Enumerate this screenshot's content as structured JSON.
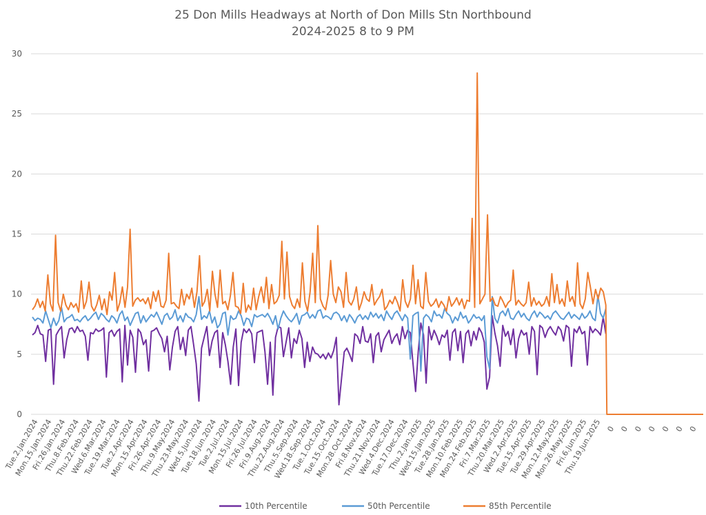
{
  "chart_data": {
    "type": "line",
    "title": "25 Don Mills Headways at North of Don Mills Stn Northbound",
    "subtitle": "2024-2025 8 to 9 PM",
    "xlabel": "",
    "ylabel": "",
    "ylim": [
      0,
      30
    ],
    "yticks": [
      0,
      5,
      10,
      15,
      20,
      25,
      30
    ],
    "grid": true,
    "legend_position": "bottom",
    "x_tick_labels": [
      "Tue.2.Jan.2024",
      "Mon.15.Jan.2024",
      "Fri.26.Jan.2024",
      "Thu.8.Feb.2024",
      "Thu.22.Feb.2024",
      "Wed.6.Mar.2024",
      "Tue.19.Mar.2024",
      "Tue.2.Apr.2024",
      "Mon.15.Apr.2024",
      "Fri.26.Apr.2024",
      "Thu.9.May.2024",
      "Thu.23.May.2024",
      "Wed.5.Jun.2024",
      "Tue.18.Jun.2024",
      "Tue.2.Jul.2024",
      "Mon.15.Jul.2024",
      "Fri.26.Jul.2024",
      "Fri.9.Aug.2024",
      "Thu.22.Aug.2024",
      "Thu.5.Sep.2024",
      "Wed.18.Sep.2024",
      "Tue.1.Oct.2024",
      "Tue.15.Oct.2024",
      "Mon.28.Oct.2024",
      "Fri.8.Nov.2024",
      "Thu.21.Nov.2024",
      "Wed.4.Dec.2024",
      "Tue.17.Dec.2024",
      "Thu.2.Jan.2025",
      "Wed.15.Jan.2025",
      "Tue.28.Jan.2025",
      "Mon.10.Feb.2025",
      "Mon.24.Feb.2025",
      "Fri.7.Mar.2025",
      "Thu.20.Mar.2025",
      "Wed.2.Apr.2025",
      "Tue.15.Apr.2025",
      "Tue.29.Apr.2025",
      "Mon.12.May.2025",
      "Mon.26.May.2025",
      "Fri.6.Jun.2025",
      "Thu.19.Jun.2025",
      "0",
      "0",
      "0",
      "0",
      "0",
      "0",
      "0"
    ],
    "date_category_count": 42,
    "trailing_zero_categories": 7,
    "series": [
      {
        "name": "10th Percentile",
        "color": "#7030a0",
        "values": [
          6.6,
          6.8,
          7.4,
          6.7,
          6.6,
          4.4,
          7.0,
          7.1,
          2.5,
          6.6,
          7.0,
          7.3,
          4.7,
          6.2,
          7.1,
          7.2,
          6.8,
          7.3,
          6.9,
          7.0,
          6.5,
          4.5,
          6.8,
          6.7,
          7.1,
          6.9,
          7.0,
          7.2,
          3.1,
          6.8,
          7.0,
          6.5,
          6.9,
          7.1,
          2.7,
          7.4,
          4.1,
          7.0,
          6.4,
          3.5,
          7.1,
          6.8,
          5.8,
          6.2,
          3.6,
          6.9,
          7.0,
          7.2,
          6.7,
          6.3,
          5.2,
          6.5,
          3.7,
          5.6,
          6.9,
          7.3,
          5.4,
          6.4,
          4.9,
          7.0,
          7.3,
          5.8,
          4.2,
          1.1,
          5.5,
          6.4,
          7.3,
          4.9,
          6.1,
          6.8,
          7.0,
          3.9,
          6.8,
          5.8,
          4.4,
          2.5,
          5.6,
          7.1,
          2.4,
          6.0,
          7.1,
          6.8,
          7.1,
          6.7,
          4.3,
          6.8,
          6.9,
          7.0,
          5.2,
          2.5,
          6.0,
          1.6,
          6.4,
          7.3,
          7.2,
          4.8,
          6.0,
          7.2,
          4.7,
          6.3,
          5.9,
          7.0,
          6.3,
          3.9,
          6.0,
          4.4,
          5.6,
          5.1,
          5.0,
          4.7,
          5.0,
          4.6,
          5.1,
          4.7,
          5.3,
          6.4,
          0.8,
          3.0,
          5.2,
          5.5,
          5.0,
          4.4,
          6.7,
          6.5,
          5.9,
          7.3,
          6.1,
          6.0,
          6.7,
          4.3,
          6.5,
          6.8,
          5.2,
          6.2,
          6.6,
          7.0,
          5.9,
          6.4,
          6.7,
          5.8,
          7.3,
          6.3,
          7.0,
          6.8,
          4.3,
          1.9,
          5.2,
          7.6,
          6.6,
          2.6,
          7.3,
          6.2,
          7.0,
          6.5,
          5.8,
          6.6,
          6.4,
          7.0,
          4.5,
          6.8,
          7.1,
          5.3,
          6.9,
          4.3,
          6.7,
          7.0,
          5.7,
          6.9,
          6.2,
          7.2,
          6.8,
          6.0,
          2.1,
          3.1,
          8.2,
          6.8,
          5.7,
          4.0,
          7.4,
          6.5,
          6.9,
          5.8,
          7.1,
          4.7,
          6.3,
          7.0,
          6.6,
          6.8,
          5.0,
          7.3,
          6.9,
          3.3,
          7.4,
          7.2,
          6.4,
          7.0,
          7.3,
          6.9,
          6.6,
          7.3,
          7.0,
          6.1,
          7.4,
          7.2,
          4.0,
          7.1,
          6.8,
          7.3,
          6.7,
          6.9,
          4.1,
          7.3,
          6.8,
          7.1,
          6.9,
          6.6,
          8.1,
          6.7
        ]
      },
      {
        "name": "50th Percentile",
        "color": "#5b9bd5",
        "values": [
          8.1,
          7.8,
          8.0,
          7.9,
          7.6,
          8.6,
          7.9,
          7.2,
          8.0,
          7.4,
          7.8,
          8.9,
          7.7,
          8.0,
          8.1,
          8.3,
          7.8,
          7.9,
          7.7,
          8.0,
          8.2,
          7.8,
          8.0,
          8.3,
          8.5,
          7.9,
          8.4,
          8.2,
          7.9,
          7.7,
          8.2,
          8.0,
          7.6,
          8.3,
          8.6,
          7.8,
          8.1,
          7.4,
          7.9,
          8.4,
          8.5,
          7.6,
          8.2,
          7.7,
          8.0,
          8.3,
          8.1,
          8.5,
          8.0,
          7.5,
          8.2,
          8.4,
          7.9,
          8.1,
          8.7,
          7.8,
          8.2,
          7.7,
          8.4,
          8.1,
          8.0,
          7.7,
          8.3,
          9.8,
          7.9,
          8.2,
          8.0,
          8.6,
          7.6,
          8.1,
          7.2,
          7.5,
          8.4,
          8.5,
          6.6,
          8.2,
          7.9,
          8.0,
          8.6,
          8.2,
          7.4,
          8.0,
          7.9,
          7.3,
          8.3,
          8.1,
          8.2,
          8.3,
          8.1,
          8.4,
          8.0,
          7.5,
          8.2,
          7.1,
          8.0,
          8.6,
          8.2,
          7.9,
          7.7,
          8.0,
          8.4,
          7.5,
          8.2,
          8.3,
          8.5,
          8.0,
          8.3,
          8.0,
          8.6,
          8.7,
          8.0,
          8.2,
          8.1,
          7.9,
          8.4,
          8.5,
          8.3,
          7.8,
          8.2,
          7.7,
          8.3,
          8.0,
          7.6,
          8.1,
          8.3,
          7.9,
          8.2,
          7.9,
          8.5,
          8.1,
          8.4,
          8.0,
          8.3,
          7.8,
          8.6,
          8.2,
          7.9,
          8.4,
          8.6,
          8.2,
          7.8,
          8.3,
          8.0,
          4.6,
          8.2,
          8.4,
          8.5,
          3.6,
          8.0,
          8.3,
          8.1,
          7.7,
          8.6,
          8.2,
          8.3,
          8.0,
          8.8,
          8.4,
          8.2,
          7.6,
          8.1,
          7.8,
          8.5,
          8.0,
          8.2,
          7.6,
          7.9,
          8.3,
          8.0,
          8.1,
          7.8,
          8.2,
          4.8,
          3.8,
          9.8,
          8.0,
          7.6,
          8.4,
          8.6,
          8.2,
          8.8,
          8.0,
          7.9,
          8.3,
          8.6,
          8.1,
          8.4,
          8.0,
          7.8,
          8.3,
          8.6,
          8.1,
          8.5,
          8.3,
          8.0,
          8.2,
          7.9,
          8.4,
          8.6,
          8.3,
          8.0,
          7.9,
          8.2,
          8.5,
          8.0,
          8.3,
          8.1,
          7.9,
          8.4,
          8.0,
          8.2,
          8.6,
          8.0,
          7.8,
          9.9,
          8.4,
          8.0,
          8.8
        ]
      },
      {
        "name": "85th Percentile",
        "color": "#ed7d31",
        "values": [
          8.7,
          9.0,
          9.6,
          8.9,
          9.4,
          8.6,
          11.6,
          9.2,
          8.6,
          14.9,
          9.3,
          8.6,
          10.0,
          9.1,
          8.7,
          9.3,
          8.9,
          9.2,
          8.5,
          11.1,
          8.8,
          9.4,
          11.0,
          9.0,
          8.6,
          9.1,
          9.9,
          8.7,
          9.6,
          8.3,
          10.2,
          9.5,
          11.8,
          8.6,
          9.3,
          10.6,
          8.9,
          10.6,
          15.4,
          9.0,
          9.5,
          9.7,
          9.4,
          9.6,
          9.2,
          9.7,
          8.8,
          10.2,
          9.4,
          10.3,
          9.0,
          8.9,
          9.5,
          13.4,
          9.2,
          9.3,
          9.0,
          8.8,
          10.4,
          9.1,
          10.0,
          9.6,
          10.5,
          8.9,
          10.2,
          13.2,
          9.0,
          9.4,
          10.4,
          8.6,
          11.9,
          10.0,
          8.9,
          12.0,
          9.2,
          9.4,
          8.7,
          9.9,
          11.8,
          9.0,
          8.9,
          8.4,
          10.9,
          8.5,
          9.1,
          8.7,
          10.5,
          8.7,
          9.8,
          10.6,
          9.3,
          11.4,
          8.8,
          10.8,
          9.2,
          9.4,
          9.9,
          14.4,
          9.6,
          13.5,
          9.8,
          9.1,
          8.8,
          9.6,
          8.9,
          12.6,
          9.4,
          8.6,
          10.2,
          13.4,
          9.3,
          15.7,
          9.6,
          9.0,
          8.7,
          9.9,
          12.8,
          10.0,
          9.3,
          10.6,
          10.2,
          8.9,
          11.8,
          9.4,
          9.1,
          9.6,
          10.6,
          8.7,
          9.3,
          10.2,
          9.6,
          9.4,
          10.8,
          9.1,
          9.5,
          9.8,
          10.4,
          8.7,
          9.0,
          9.5,
          9.2,
          9.8,
          9.3,
          8.6,
          11.2,
          9.4,
          8.9,
          9.6,
          12.4,
          9.2,
          11.2,
          9.0,
          8.8,
          11.8,
          9.4,
          9.0,
          9.2,
          9.6,
          8.9,
          9.4,
          9.1,
          8.6,
          9.8,
          9.0,
          9.3,
          9.7,
          9.1,
          9.6,
          8.8,
          9.5,
          9.4,
          16.3,
          8.9,
          28.4,
          9.2,
          9.6,
          10.0,
          16.6,
          9.4,
          9.7,
          9.1,
          9.0,
          9.8,
          9.4,
          8.9,
          9.3,
          9.5,
          12.0,
          9.1,
          9.5,
          9.2,
          9.0,
          9.3,
          11.0,
          9.0,
          9.7,
          9.1,
          9.4,
          9.0,
          9.2,
          9.8,
          9.0,
          11.7,
          9.3,
          10.8,
          9.2,
          9.6,
          9.0,
          11.1,
          9.4,
          9.8,
          9.0,
          12.6,
          9.2,
          8.8,
          9.6,
          11.8,
          10.6,
          9.2,
          10.4,
          9.6,
          10.5,
          10.2,
          9.1,
          0,
          0,
          0,
          0,
          0,
          0,
          0,
          0
        ]
      }
    ]
  },
  "legend": {
    "items": [
      "10th Percentile",
      "50th Percentile",
      "85th Percentile"
    ]
  }
}
